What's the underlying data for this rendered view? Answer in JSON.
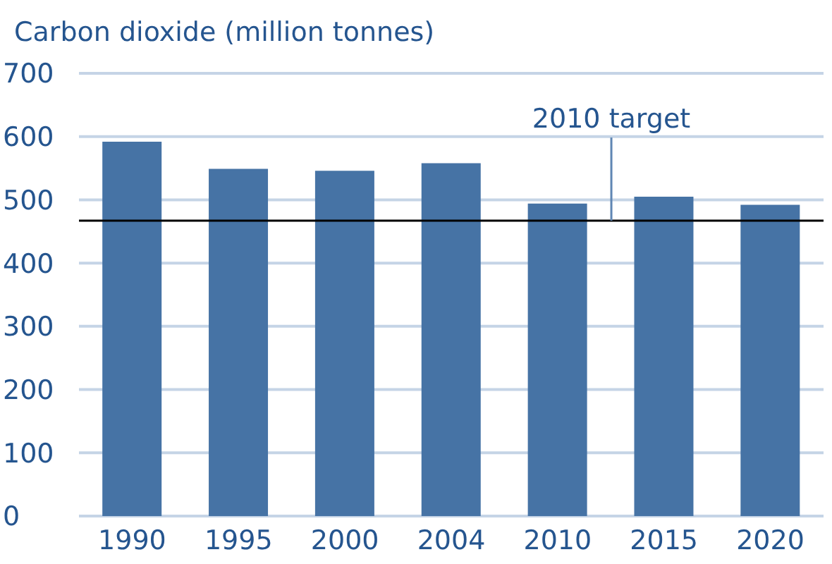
{
  "chart_data": {
    "type": "bar",
    "ylabel": "Carbon dioxide (million tonnes)",
    "categories": [
      "1990",
      "1995",
      "2000",
      "2004",
      "2010",
      "2015",
      "2020"
    ],
    "values": [
      592,
      549,
      546,
      558,
      494,
      505,
      492
    ],
    "color": "#4673a5",
    "ylim": [
      0,
      700
    ],
    "yticks": [
      0,
      100,
      200,
      300,
      400,
      500,
      600,
      700
    ],
    "grid": "y",
    "ref_lines": [
      {
        "axis": "y",
        "value": 467,
        "label": "2010 target",
        "color": "#000000"
      }
    ]
  }
}
